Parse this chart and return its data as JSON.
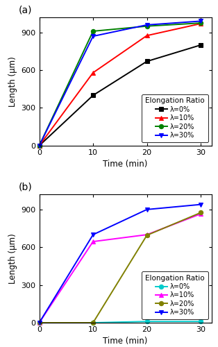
{
  "time": [
    0,
    10,
    20,
    30
  ],
  "subplot_a": {
    "title": "(a)",
    "series": [
      {
        "label": "λ=0%",
        "color": "black",
        "marker": "s",
        "values": [
          0,
          400,
          670,
          800
        ]
      },
      {
        "label": "λ=10%",
        "color": "red",
        "marker": "^",
        "values": [
          0,
          580,
          875,
          970
        ]
      },
      {
        "label": "λ=20%",
        "color": "green",
        "marker": "o",
        "values": [
          0,
          910,
          950,
          975
        ]
      },
      {
        "label": "λ=30%",
        "color": "blue",
        "marker": "v",
        "values": [
          0,
          870,
          960,
          990
        ]
      }
    ],
    "ylabel": "Length (μm)",
    "xlabel": "Time (min)",
    "ylim": [
      0,
      1020
    ],
    "yticks": [
      0,
      300,
      600,
      900
    ],
    "xticks": [
      0,
      10,
      20,
      30
    ],
    "xlim": [
      0,
      32
    ],
    "legend_title": "Elongation Ratio"
  },
  "subplot_b": {
    "title": "(b)",
    "series": [
      {
        "label": "λ=0%",
        "color": "#00CCCC",
        "marker": "o",
        "values": [
          0,
          0,
          10,
          10
        ]
      },
      {
        "label": "λ=10%",
        "color": "magenta",
        "marker": "^",
        "values": [
          0,
          645,
          700,
          865
        ]
      },
      {
        "label": "λ=20%",
        "color": "#808000",
        "marker": "o",
        "values": [
          0,
          0,
          695,
          875
        ]
      },
      {
        "label": "λ=30%",
        "color": "blue",
        "marker": "v",
        "values": [
          0,
          700,
          900,
          940
        ]
      }
    ],
    "ylabel": "Length (μm)",
    "xlabel": "Time (min)",
    "ylim": [
      0,
      1020
    ],
    "yticks": [
      0,
      300,
      600,
      900
    ],
    "xticks": [
      0,
      10,
      20,
      30
    ],
    "xlim": [
      0,
      32
    ],
    "legend_title": "Elongation Ratio"
  }
}
